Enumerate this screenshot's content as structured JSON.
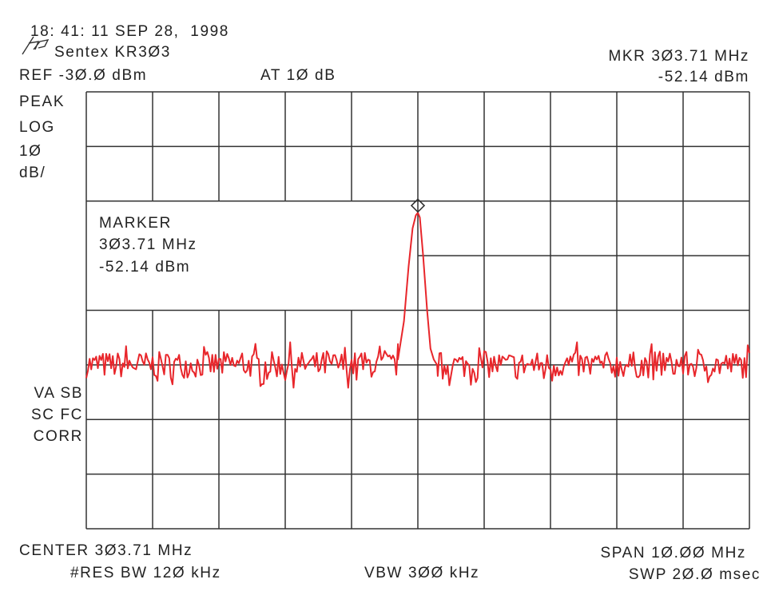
{
  "header": {
    "timestamp": "18: 41: 11 SEP 28,  1998",
    "logo": "hp",
    "title": "Sentex KR3Ø3",
    "ref_level": "REF -3Ø.Ø dBm",
    "attenuation": "AT 1Ø dB",
    "marker_freq": "MKR 3Ø3.71 MHz",
    "marker_level": "-52.14 dBm"
  },
  "left_labels": {
    "detector": "PEAK",
    "scale_type": "LOG",
    "scale_value": "1Ø",
    "scale_unit": "dB/",
    "flags1": "VA SB",
    "flags2": "SC FC",
    "flags3": "CORR"
  },
  "marker_box": {
    "title": "MARKER",
    "freq": "3Ø3.71 MHz",
    "level": "-52.14 dBm"
  },
  "footer": {
    "center": "CENTER 3Ø3.71 MHz",
    "span": "SPAN 1Ø.ØØ MHz",
    "rbw": "#RES BW 12Ø kHz",
    "vbw": "VBW 3ØØ kHz",
    "sweep": "SWP 2Ø.Ø msec"
  },
  "chart_data": {
    "type": "line",
    "x_unit": "MHz",
    "y_unit": "dBm",
    "xlim": [
      298.71,
      308.71
    ],
    "ylim": [
      -110,
      -30
    ],
    "x_divisions": 10,
    "y_divisions": 8,
    "grid": true,
    "trace_color": "#e8262b",
    "marker": {
      "x": 303.71,
      "y": -52.14,
      "symbol": "diamond"
    },
    "noise_floor_dbm": -80,
    "noise_ripple_db": 3,
    "peak_points": [
      [
        303.41,
        -79
      ],
      [
        303.5,
        -72
      ],
      [
        303.57,
        -62
      ],
      [
        303.63,
        -55
      ],
      [
        303.68,
        -52.6
      ],
      [
        303.71,
        -52.14
      ],
      [
        303.74,
        -53
      ],
      [
        303.79,
        -60
      ],
      [
        303.85,
        -70
      ],
      [
        303.9,
        -77
      ],
      [
        303.95,
        -79
      ],
      [
        304.0,
        -80
      ]
    ]
  }
}
